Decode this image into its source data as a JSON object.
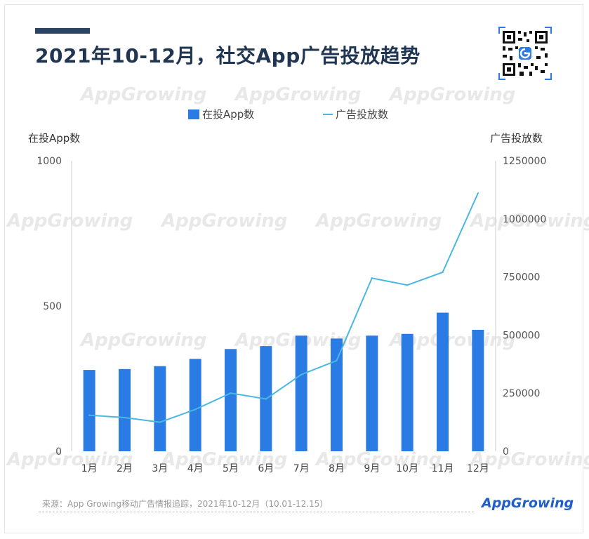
{
  "title": "2021年10-12月，社交App广告投放趋势",
  "legend": {
    "bar_label": "在投App数",
    "line_label": "广告投放数"
  },
  "left_axis_title": "在投App数",
  "right_axis_title": "广告投放数",
  "source": "来源：App Growing移动广告情报追踪，2021年10-12月（10.01-12.15）",
  "brand": "AppGrowing",
  "watermark": "AppGrowing",
  "colors": {
    "bar": "#2a7be4",
    "line": "#4ab7e3",
    "title": "#1f3552"
  },
  "chart_data": {
    "type": "bar",
    "categories": [
      "1月",
      "2月",
      "3月",
      "4月",
      "5月",
      "6月",
      "7月",
      "8月",
      "9月",
      "10月",
      "11月",
      "12月"
    ],
    "series": [
      {
        "name": "在投App数",
        "type": "bar",
        "axis": "left",
        "values": [
          280,
          283,
          293,
          318,
          352,
          362,
          398,
          388,
          398,
          404,
          477,
          418
        ]
      },
      {
        "name": "广告投放数",
        "type": "line",
        "axis": "right",
        "values": [
          155000,
          145000,
          125000,
          180000,
          250000,
          225000,
          330000,
          390000,
          745000,
          715000,
          770000,
          1110000
        ]
      }
    ],
    "left_axis": {
      "ticks": [
        "0",
        "500",
        "1000"
      ],
      "ylim": [
        0,
        1000
      ]
    },
    "right_axis": {
      "ticks": [
        "0",
        "250000",
        "500000",
        "750000",
        "1000000",
        "1250000"
      ],
      "ylim": [
        0,
        1250000
      ]
    },
    "grid": false,
    "legend_position": "top-center"
  }
}
